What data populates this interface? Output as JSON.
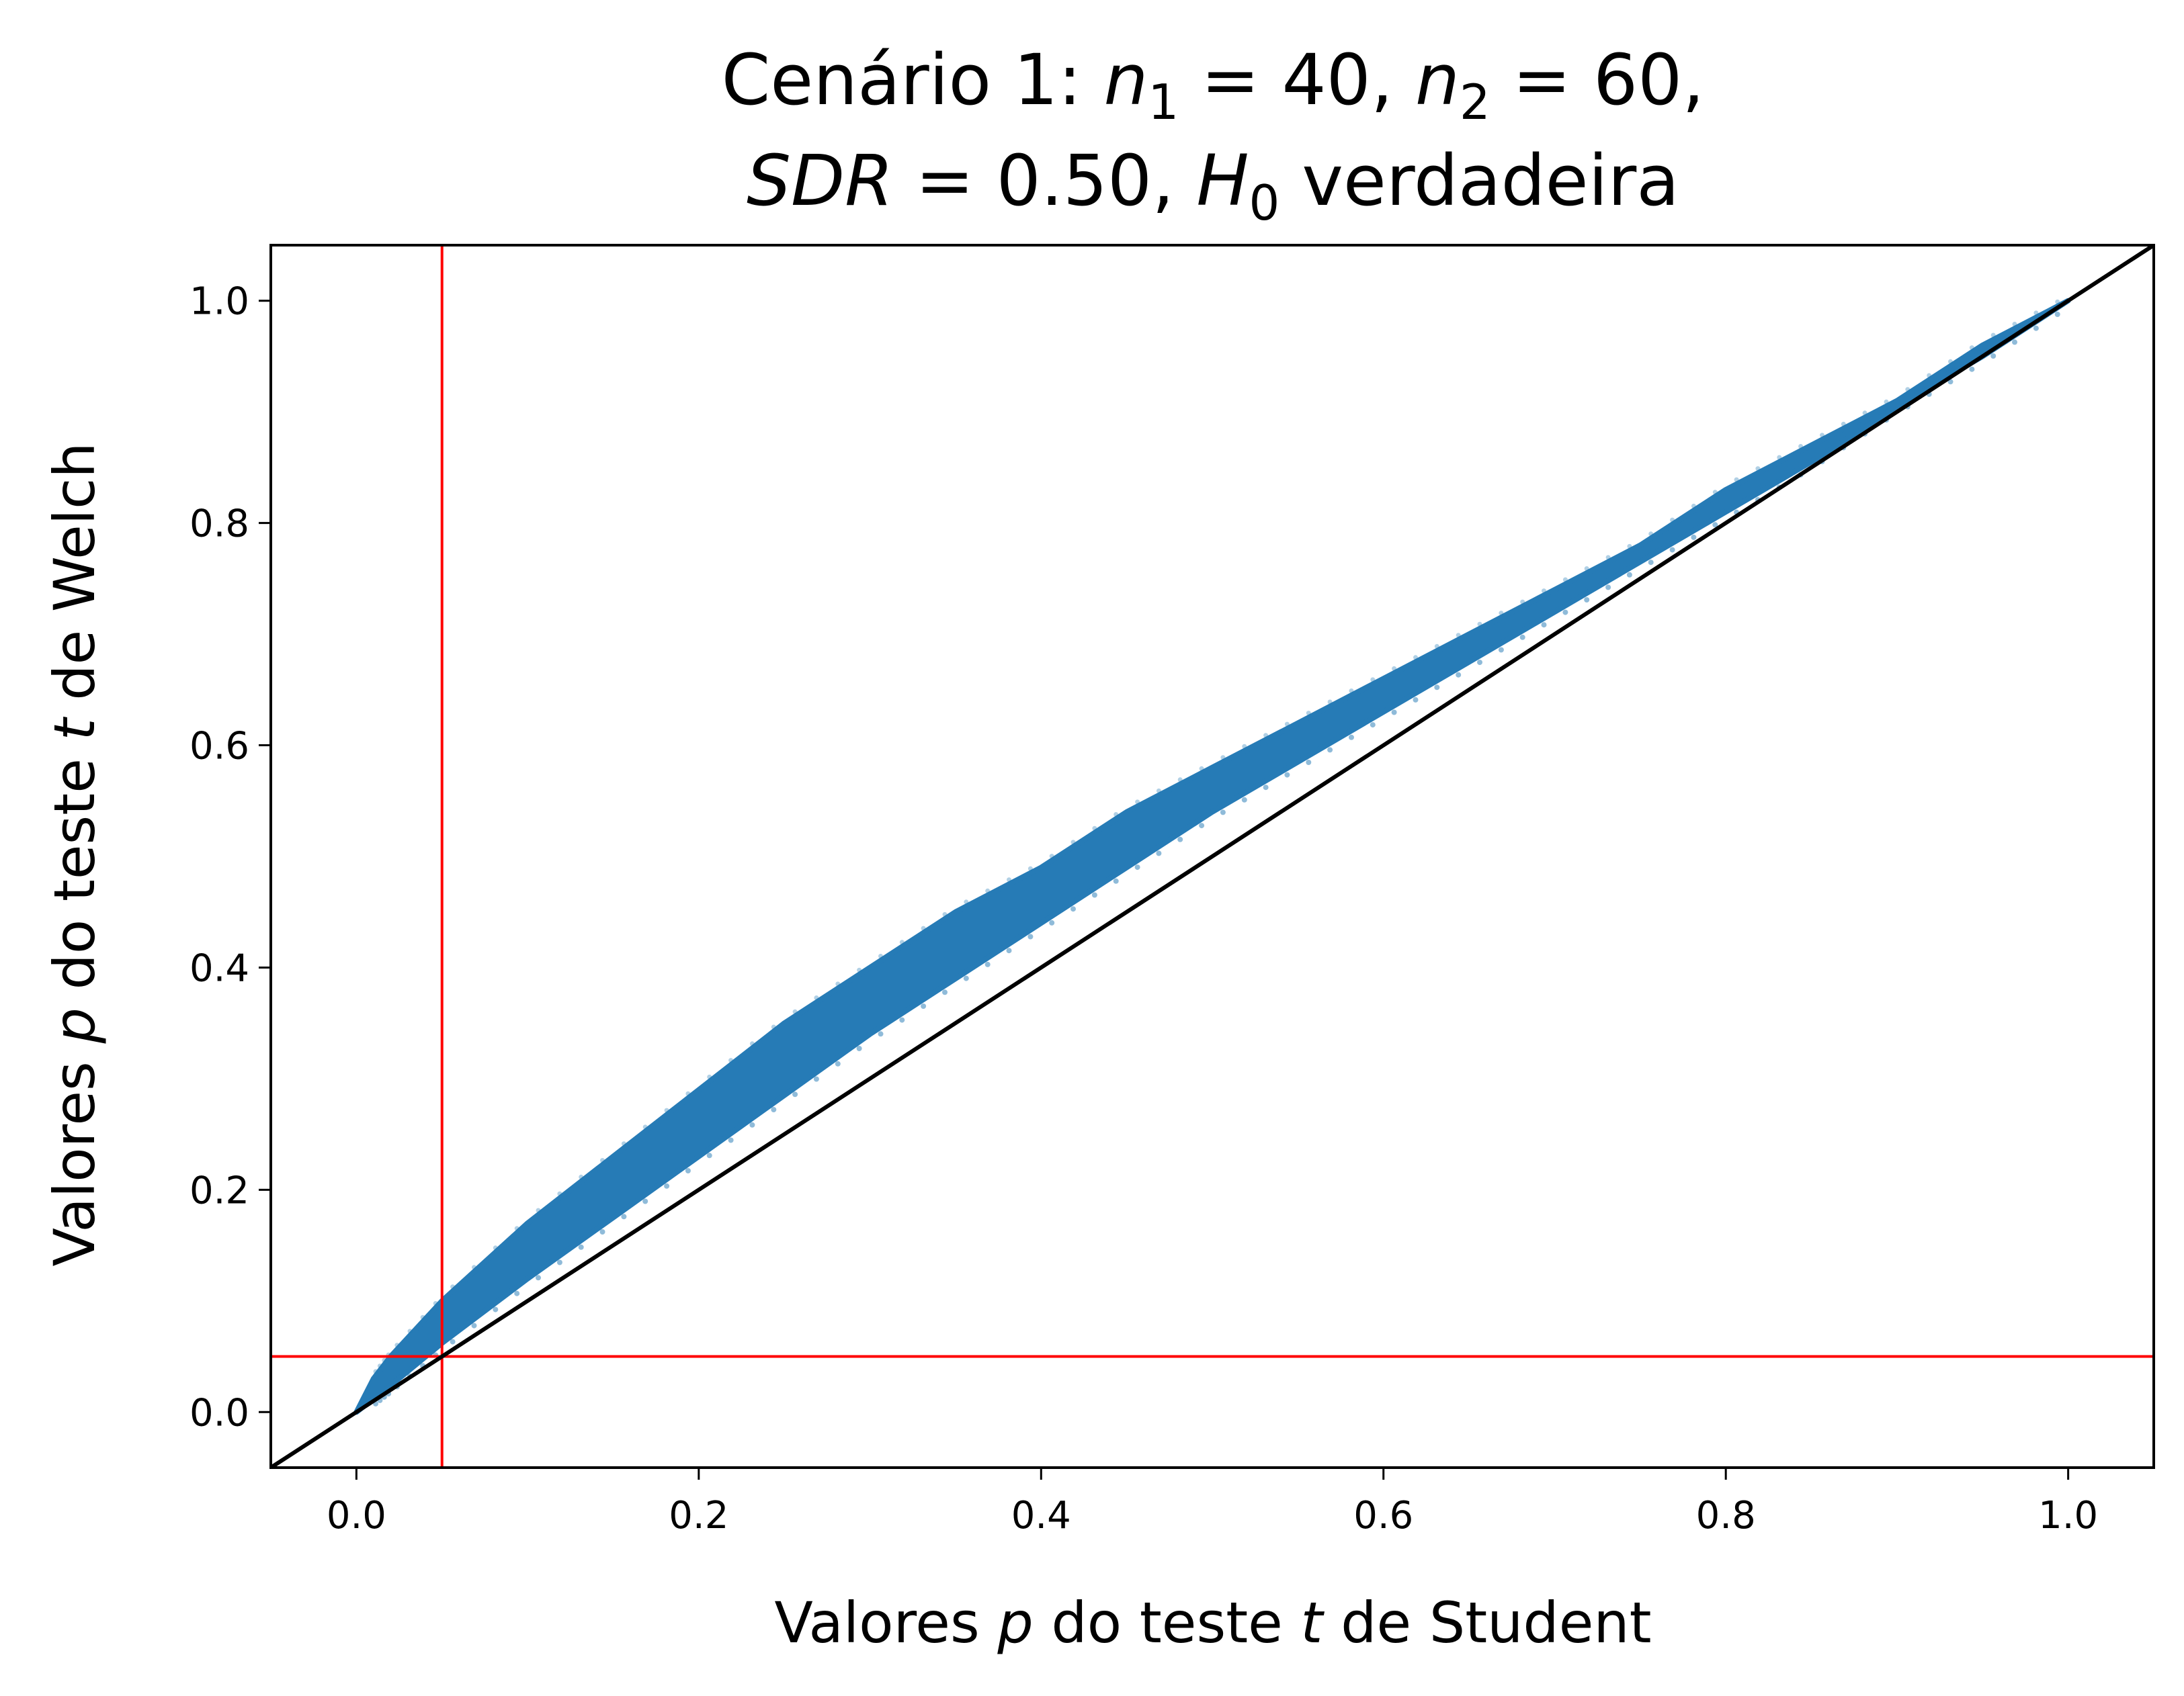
{
  "chart_data": {
    "type": "scatter",
    "title_line1": {
      "prefix": "Cenário 1: ",
      "var1": "n",
      "sub1": "1",
      "eq1": " = 40, ",
      "var2": "n",
      "sub2": "2",
      "eq2": " = 60,"
    },
    "title_line2": {
      "var1": "SDR",
      "eq1": " = 0.50, ",
      "var2": "H",
      "sub2": "0",
      "rest": " verdadeira"
    },
    "xlabel": {
      "pre": "Valores ",
      "p": "p",
      "mid": " do teste ",
      "t": "t",
      "post": " de Student"
    },
    "ylabel": {
      "pre": "Valores ",
      "p": "p",
      "mid": " do teste ",
      "t": "t",
      "post": " de Welch"
    },
    "xlim": [
      -0.05,
      1.05
    ],
    "ylim": [
      -0.05,
      1.05
    ],
    "xticks": [
      "0.0",
      "0.2",
      "0.4",
      "0.6",
      "0.8",
      "1.0"
    ],
    "yticks": [
      "0.0",
      "0.2",
      "0.4",
      "0.6",
      "0.8",
      "1.0"
    ],
    "grid": false,
    "series": [
      {
        "color": "#1f77b4",
        "band_x": [
          0.0,
          0.01,
          0.02,
          0.05,
          0.1,
          0.15,
          0.2,
          0.25,
          0.3,
          0.35,
          0.4,
          0.45,
          0.5,
          0.55,
          0.6,
          0.65,
          0.7,
          0.75,
          0.8,
          0.85,
          0.9,
          0.95,
          1.0
        ],
        "band_upper": [
          0.0,
          0.03,
          0.05,
          0.1,
          0.17,
          0.23,
          0.29,
          0.35,
          0.4,
          0.45,
          0.49,
          0.54,
          0.58,
          0.62,
          0.66,
          0.7,
          0.74,
          0.78,
          0.83,
          0.87,
          0.91,
          0.96,
          1.0
        ],
        "band_lower": [
          0.0,
          0.012,
          0.024,
          0.062,
          0.12,
          0.175,
          0.23,
          0.285,
          0.34,
          0.39,
          0.44,
          0.49,
          0.54,
          0.585,
          0.63,
          0.675,
          0.72,
          0.765,
          0.81,
          0.855,
          0.905,
          0.95,
          1.0
        ]
      }
    ],
    "reference_lines": [
      {
        "orientation": "vertical",
        "value": 0.05,
        "color": "#ff0000"
      },
      {
        "orientation": "horizontal",
        "value": 0.05,
        "color": "#ff0000"
      },
      {
        "orientation": "diagonal",
        "slope": 1,
        "intercept": 0,
        "color": "#000000"
      }
    ]
  }
}
